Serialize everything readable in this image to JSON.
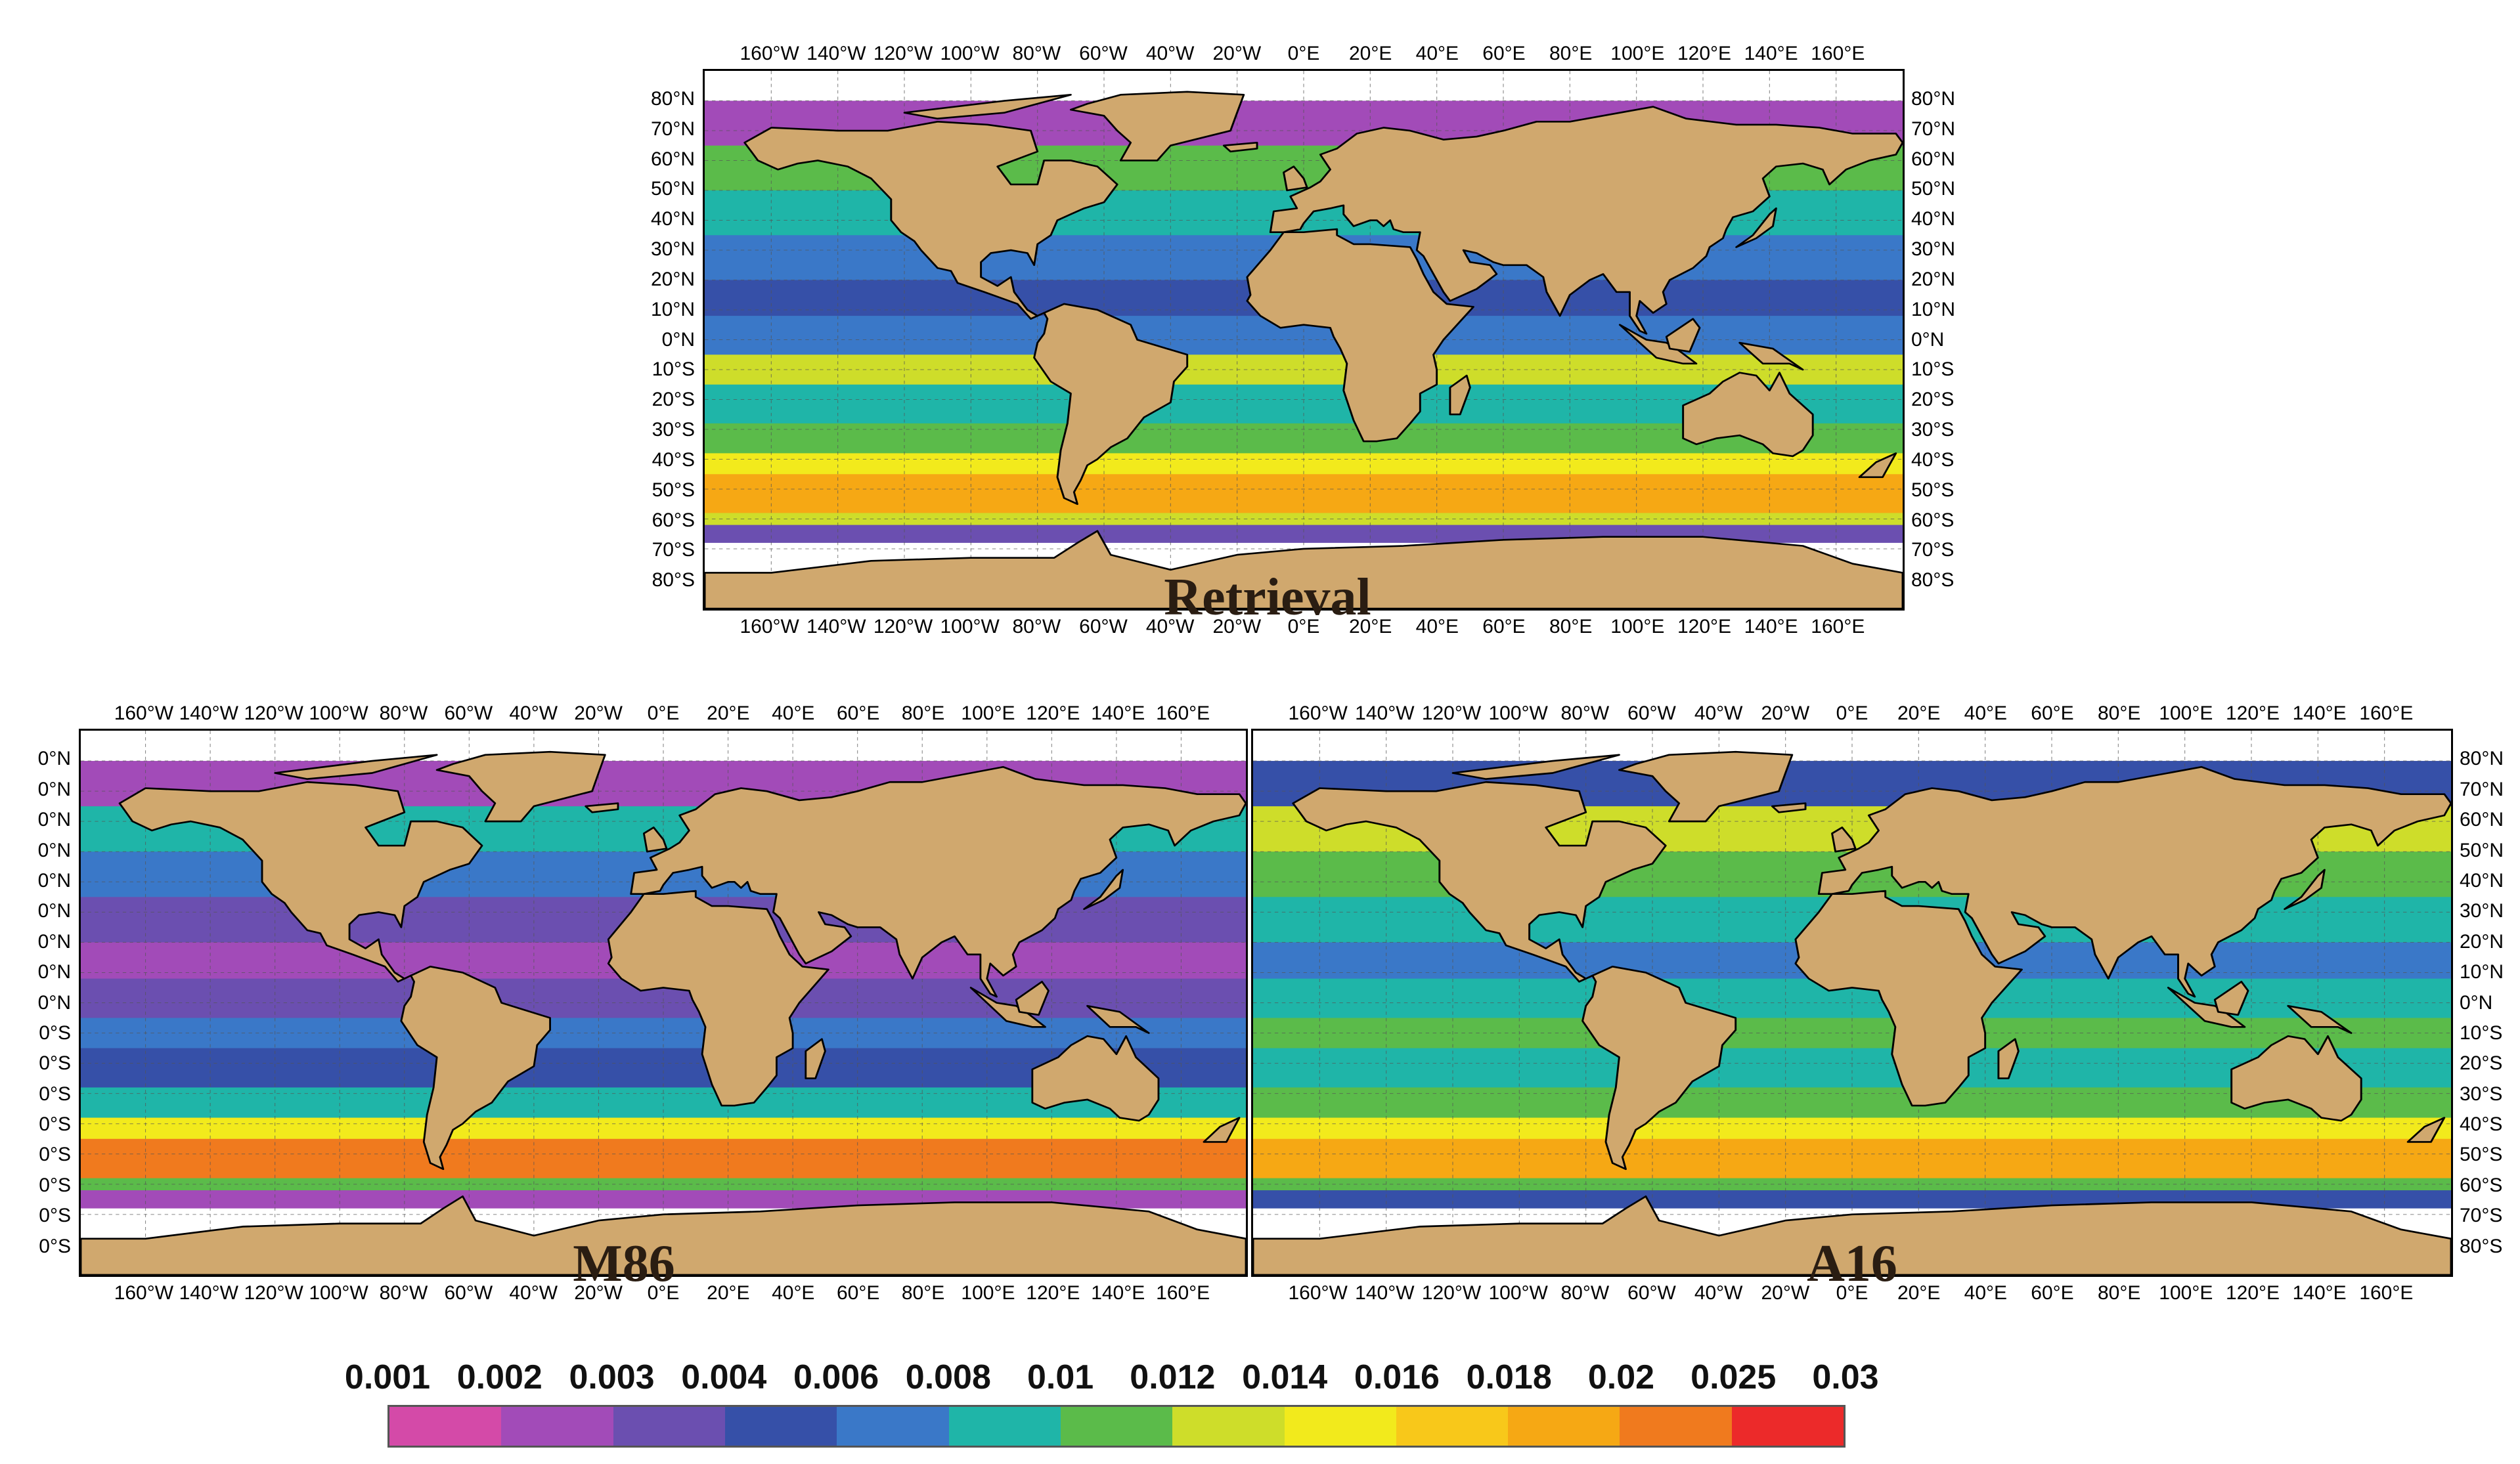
{
  "colors": {
    "ocean_low": "#3a4ea8",
    "land": "#d0a86e",
    "coast": "#000000",
    "ice": "#ffffff"
  },
  "lon_ticks": [
    "160°W",
    "140°W",
    "120°W",
    "100°W",
    "80°W",
    "60°W",
    "40°W",
    "20°W",
    "0°E",
    "20°E",
    "40°E",
    "60°E",
    "80°E",
    "100°E",
    "120°E",
    "140°E",
    "160°E"
  ],
  "lat_ticks": [
    "80°N",
    "70°N",
    "60°N",
    "50°N",
    "40°N",
    "30°N",
    "20°N",
    "10°N",
    "0°N",
    "10°S",
    "20°S",
    "30°S",
    "40°S",
    "50°S",
    "60°S",
    "70°S",
    "80°S"
  ],
  "lat_ticks_truncated": [
    "0°N",
    "0°N",
    "0°N",
    "0°N",
    "0°N",
    "0°N",
    "0°N",
    "0°N",
    "0°N",
    "0°S",
    "0°S",
    "0°S",
    "0°S",
    "0°S",
    "0°S",
    "0°S",
    "0°S"
  ],
  "panels": [
    {
      "id": "retrieval",
      "label": "Retrieval"
    },
    {
      "id": "m86",
      "label": "M86"
    },
    {
      "id": "a16",
      "label": "A16"
    }
  ],
  "colorbar": {
    "labels": [
      "0.001",
      "0.002",
      "0.003",
      "0.004",
      "0.006",
      "0.008",
      "0.01",
      "0.012",
      "0.014",
      "0.016",
      "0.018",
      "0.02",
      "0.025",
      "0.03"
    ],
    "colors": [
      "#d44aa8",
      "#a24bb8",
      "#6b4fb0",
      "#3650a8",
      "#3a78c8",
      "#1fb5a8",
      "#5bbb4a",
      "#cedd2a",
      "#f2ea1c",
      "#f8c81a",
      "#f6a814",
      "#f07a1e",
      "#ec2a2a"
    ]
  }
}
